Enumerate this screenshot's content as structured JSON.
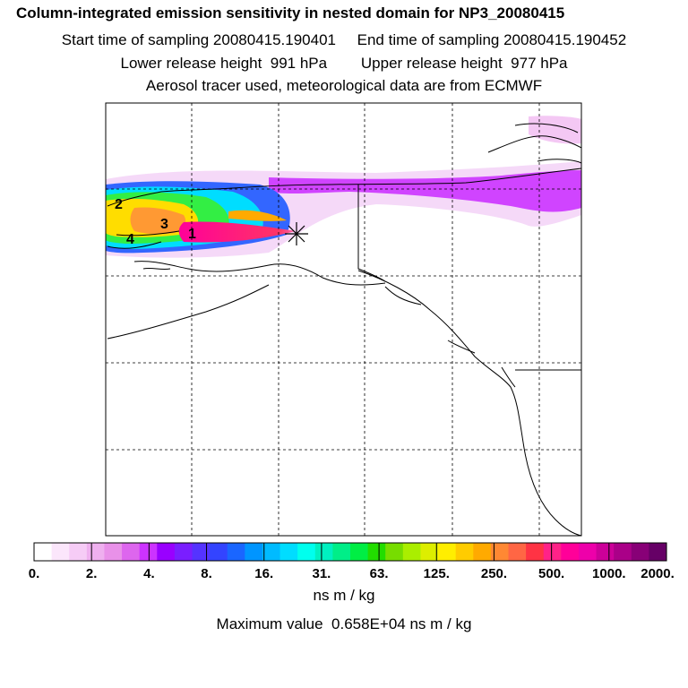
{
  "title": "Column-integrated emission sensitivity in nested domain for NP3_20080415",
  "sampling_line": "Start time of sampling 20080415.190401     End time of sampling 20080415.190452",
  "release_line": "Lower release height  991 hPa        Upper release height  977 hPa",
  "tracer_line": "Aerosol tracer used, meteorological data are from ECMWF",
  "map": {
    "labels": [
      "1",
      "2",
      "3",
      "4"
    ],
    "marker": "receptor-star-icon",
    "gridlines": "dashed"
  },
  "colorbar": {
    "tick_labels": [
      "0.",
      "2.",
      "4.",
      "8.",
      "16.",
      "31.",
      "63.",
      "125.",
      "250.",
      "500.",
      "1000.",
      "2000."
    ],
    "colors": [
      "#ffffff",
      "#fbe6fb",
      "#f6ccf6",
      "#efb0ef",
      "#e991e9",
      "#dd66ee",
      "#cc33ff",
      "#9900ff",
      "#7a1eff",
      "#5533ff",
      "#3344ff",
      "#1a66ff",
      "#0095ff",
      "#00bbff",
      "#00ddff",
      "#00ffee",
      "#00f0c0",
      "#00ee88",
      "#00ee44",
      "#22dd00",
      "#77dd00",
      "#aaee00",
      "#ddee00",
      "#ffee00",
      "#ffcc00",
      "#ffaa00",
      "#ff8833",
      "#ff6644",
      "#ff3344",
      "#ff2288",
      "#ff0099",
      "#ee00aa",
      "#cc0099",
      "#aa0088",
      "#880077",
      "#660066"
    ],
    "units": "ns m / kg"
  },
  "max_line": "Maximum value  0.658E+04 ns m / kg"
}
